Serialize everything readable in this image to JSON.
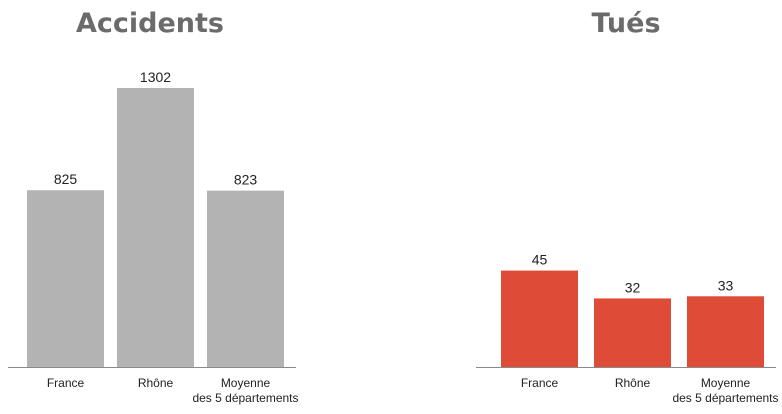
{
  "chart_data": [
    {
      "type": "bar",
      "title": "Accidents",
      "categories": [
        "France",
        "Rhône",
        "Moyenne\ndes 5 départements"
      ],
      "values": [
        825,
        1302,
        823
      ],
      "ylim": [
        0,
        1400
      ],
      "grid": false,
      "color": "#b3b3b3"
    },
    {
      "type": "bar",
      "title": "Tués",
      "categories": [
        "France",
        "Rhône",
        "Moyenne\ndes 5 départements"
      ],
      "values": [
        45,
        32,
        33
      ],
      "ylim": [
        0,
        140
      ],
      "grid": false,
      "color": "#de4b37"
    }
  ]
}
